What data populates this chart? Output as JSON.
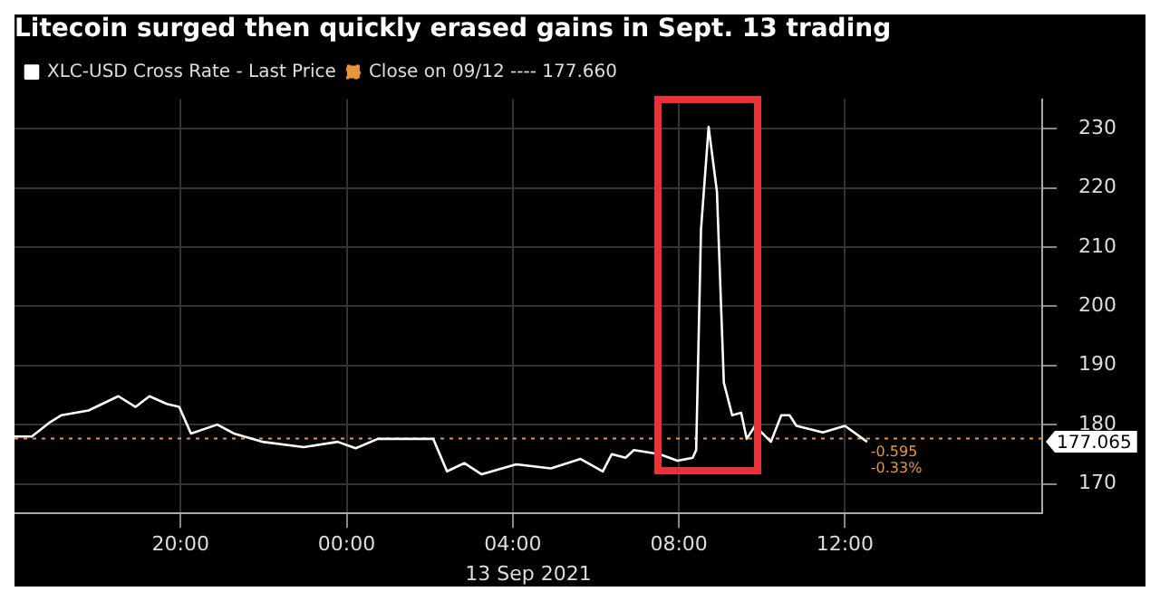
{
  "chart_data": {
    "type": "line",
    "title": "Litecoin surged then quickly erased gains in Sept. 13 trading",
    "xlabel": "13 Sep 2021",
    "x": [
      "2021-09-12T16:00",
      "2021-09-12T16:25",
      "2021-09-12T16:50",
      "2021-09-12T17:08",
      "2021-09-12T17:47",
      "2021-09-12T18:30",
      "2021-09-12T18:55",
      "2021-09-12T19:15",
      "2021-09-12T19:40",
      "2021-09-12T19:58",
      "2021-09-12T20:15",
      "2021-09-12T20:53",
      "2021-09-12T21:17",
      "2021-09-12T21:58",
      "2021-09-12T22:58",
      "2021-09-12T23:47",
      "2021-09-13T00:13",
      "2021-09-13T00:45",
      "2021-09-13T02:05",
      "2021-09-13T02:25",
      "2021-09-13T02:50",
      "2021-09-13T03:15",
      "2021-09-13T04:05",
      "2021-09-13T04:55",
      "2021-09-13T05:38",
      "2021-09-13T06:10",
      "2021-09-13T06:23",
      "2021-09-13T06:43",
      "2021-09-13T06:55",
      "2021-09-13T07:32",
      "2021-09-13T07:58",
      "2021-09-13T08:20",
      "2021-09-13T08:25",
      "2021-09-13T08:32",
      "2021-09-13T08:43",
      "2021-09-13T08:55",
      "2021-09-13T09:05",
      "2021-09-13T09:17",
      "2021-09-13T09:30",
      "2021-09-13T09:38",
      "2021-09-13T09:50",
      "2021-09-13T10:13",
      "2021-09-13T10:28",
      "2021-09-13T10:40",
      "2021-09-13T10:50",
      "2021-09-13T11:28",
      "2021-09-13T12:00",
      "2021-09-13T12:32"
    ],
    "series": [
      {
        "name": "XLC-USD Cross Rate - Last Price",
        "color": "#ffffff",
        "values": [
          178.0,
          178.0,
          180.3,
          181.6,
          182.4,
          184.8,
          183.0,
          184.8,
          183.5,
          183.0,
          178.5,
          180.0,
          178.5,
          177.1,
          176.2,
          177.1,
          176.0,
          177.6,
          177.6,
          172.1,
          173.5,
          171.6,
          173.3,
          172.6,
          174.2,
          172.1,
          175.0,
          174.4,
          175.7,
          175.0,
          173.9,
          174.4,
          175.7,
          213.0,
          230.3,
          219.4,
          187.1,
          181.6,
          182.0,
          177.6,
          179.8,
          177.1,
          181.6,
          181.6,
          179.8,
          178.7,
          179.8,
          177.1
        ]
      }
    ],
    "ref_lines": [
      {
        "axis": "y",
        "value": 177.66,
        "label": "Close on 09/12 ---- 177.660",
        "color": "#e8963c",
        "line_style": "dotted"
      }
    ],
    "annotations": [
      "177.065",
      "-0.595",
      "-0.33%"
    ],
    "xlim": [
      "2021-09-12T16:00",
      "2021-09-13T16:45"
    ],
    "xticks": [
      {
        "value": "2021-09-12T20:00",
        "label": "20:00"
      },
      {
        "value": "2021-09-13T00:00",
        "label": "00:00"
      },
      {
        "value": "2021-09-13T04:00",
        "label": "04:00"
      },
      {
        "value": "2021-09-13T08:00",
        "label": "08:00"
      },
      {
        "value": "2021-09-13T12:00",
        "label": "12:00"
      }
    ],
    "ylim": [
      165,
      235
    ],
    "yticks": [
      170,
      180,
      190,
      200,
      210,
      220,
      230
    ],
    "grid": true,
    "legend": "top left",
    "marker": "none",
    "line_style": "solid"
  }
}
